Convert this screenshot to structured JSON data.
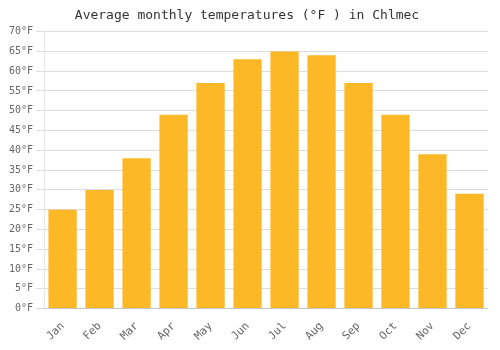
{
  "chart_data": {
    "type": "bar",
    "title": "Average monthly temperatures (°F ) in Chlmec",
    "categories": [
      "Jan",
      "Feb",
      "Mar",
      "Apr",
      "May",
      "Jun",
      "Jul",
      "Aug",
      "Sep",
      "Oct",
      "Nov",
      "Dec"
    ],
    "values": [
      25,
      30,
      38,
      49,
      57,
      63,
      65,
      64,
      57,
      49,
      39,
      29
    ],
    "color": "#FDB827",
    "ylim": [
      0,
      70
    ],
    "yticks": [
      {
        "value": 0,
        "label": "0°F"
      },
      {
        "value": 5,
        "label": "5°F"
      },
      {
        "value": 10,
        "label": "10°F"
      },
      {
        "value": 15,
        "label": "15°F"
      },
      {
        "value": 20,
        "label": "20°F"
      },
      {
        "value": 25,
        "label": "25°F"
      },
      {
        "value": 30,
        "label": "30°F"
      },
      {
        "value": 35,
        "label": "35°F"
      },
      {
        "value": 40,
        "label": "40°F"
      },
      {
        "value": 45,
        "label": "45°F"
      },
      {
        "value": 50,
        "label": "50°F"
      },
      {
        "value": 55,
        "label": "55°F"
      },
      {
        "value": 60,
        "label": "60°F"
      },
      {
        "value": 65,
        "label": "65°F"
      },
      {
        "value": 70,
        "label": "70°F"
      }
    ],
    "grid": true
  }
}
